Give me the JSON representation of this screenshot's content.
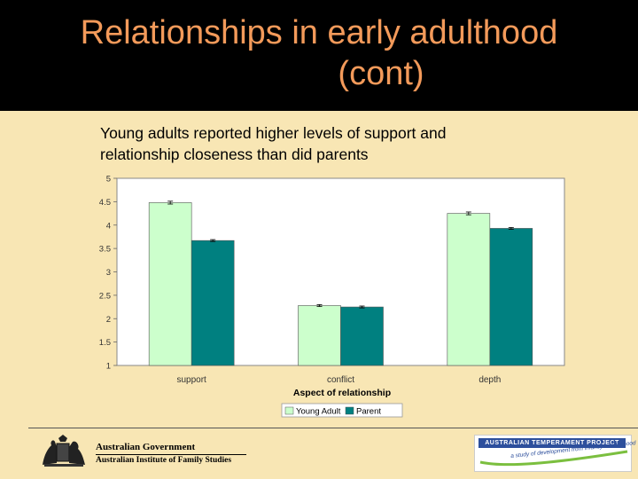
{
  "slide": {
    "title_line1": "Relationships in early adulthood",
    "title_line2": "(cont)",
    "subtitle_line1": "Young adults reported higher levels of support and",
    "subtitle_line2": "relationship closeness than did parents"
  },
  "footer": {
    "gov_line1": "Australian Government",
    "gov_line2": "Australian Institute of Family Studies",
    "atp_title": "AUSTRALIAN TEMPERAMENT PROJECT",
    "atp_tagline": "a study of development from infancy to adulthood"
  },
  "colors": {
    "young_adult": "#CCFFCC",
    "parent": "#008080",
    "background": "#F8E6B4",
    "title": "#F39A5A"
  },
  "chart_data": {
    "type": "bar",
    "categories": [
      "support",
      "conflict",
      "depth"
    ],
    "series": [
      {
        "name": "Young Adult",
        "values": [
          4.48,
          2.28,
          4.25
        ]
      },
      {
        "name": "Parent",
        "values": [
          3.67,
          2.25,
          3.93
        ]
      }
    ],
    "error": [
      [
        0.03,
        0.02,
        0.03
      ],
      [
        0.02,
        0.02,
        0.02
      ]
    ],
    "xlabel": "Aspect of relationship",
    "ylabel": "",
    "ylim": [
      1,
      5
    ],
    "yticks": [
      "1",
      "1.5",
      "2",
      "2.5",
      "3",
      "3.5",
      "4",
      "4.5",
      "5"
    ],
    "grid": false,
    "legend": "bottom"
  }
}
